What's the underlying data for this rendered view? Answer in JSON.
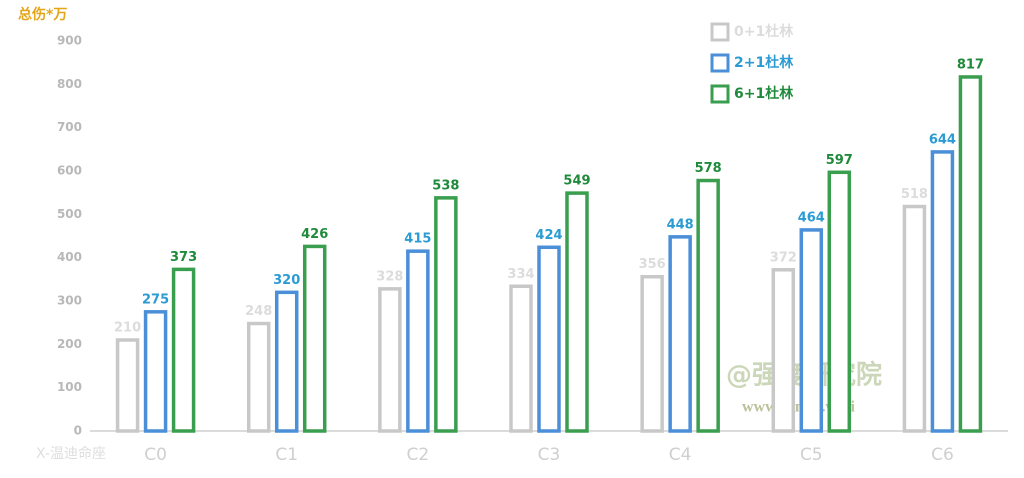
{
  "chart_data": {
    "type": "bar",
    "y_axis_label": "总伤*万",
    "x_axis_label": "X-温迪命座",
    "categories": [
      "C0",
      "C1",
      "C2",
      "C3",
      "C4",
      "C5",
      "C6"
    ],
    "series": [
      {
        "name": "0+1杜林",
        "color": "#c8c8c8",
        "label_color": "#dcdcdc",
        "values": [
          210,
          248,
          328,
          334,
          356,
          372,
          518
        ]
      },
      {
        "name": "2+1杜林",
        "color": "#4a8fd8",
        "label_color": "#2b9bd3",
        "values": [
          275,
          320,
          415,
          424,
          448,
          464,
          644
        ]
      },
      {
        "name": "6+1杜林",
        "color": "#3a9e4f",
        "label_color": "#1f8a3b",
        "values": [
          373,
          426,
          538,
          549,
          578,
          597,
          817
        ]
      }
    ],
    "ylim": [
      0,
      900
    ],
    "yticks": [
      0,
      100,
      200,
      300,
      400,
      500,
      600,
      700,
      800,
      900
    ],
    "grid": false,
    "legend": "top-right",
    "annotations": [
      "@强度研究院",
      "www.gensri.wiki"
    ]
  }
}
